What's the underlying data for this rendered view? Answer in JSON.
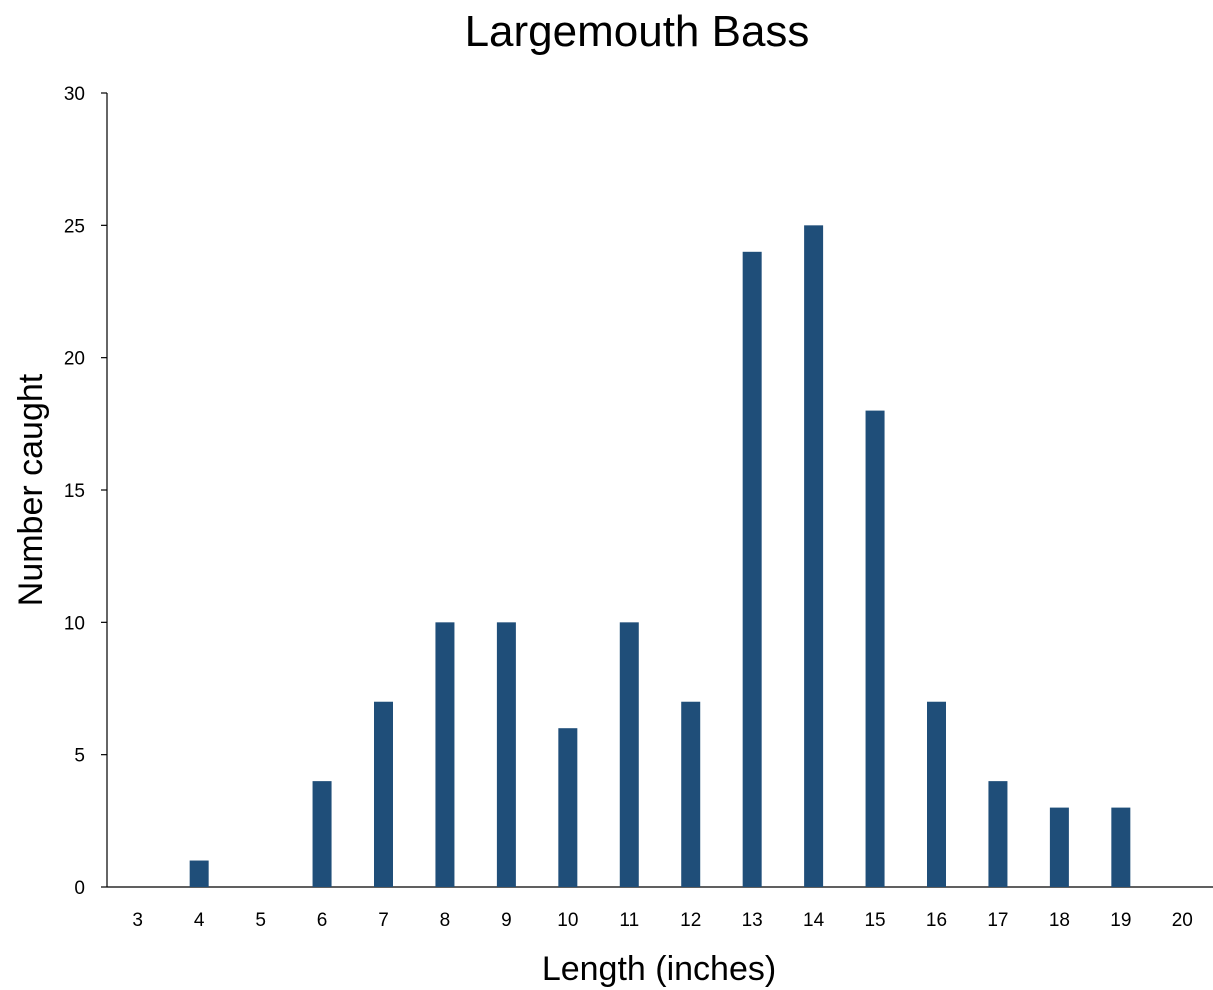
{
  "chart_data": {
    "type": "bar",
    "title": "Largemouth Bass",
    "xlabel": "Length (inches)",
    "ylabel": "Number caught",
    "categories": [
      "3",
      "4",
      "5",
      "6",
      "7",
      "8",
      "9",
      "10",
      "11",
      "12",
      "13",
      "14",
      "15",
      "16",
      "17",
      "18",
      "19",
      "20"
    ],
    "values": [
      0,
      1,
      0,
      4,
      7,
      10,
      10,
      6,
      10,
      7,
      24,
      25,
      18,
      7,
      4,
      3,
      3,
      0
    ],
    "ylim": [
      0,
      30
    ],
    "yticks": [
      "0",
      "5",
      "10",
      "15",
      "20",
      "25",
      "30"
    ],
    "grid": false,
    "legend": "none",
    "bar_color": "#1F4E79"
  }
}
